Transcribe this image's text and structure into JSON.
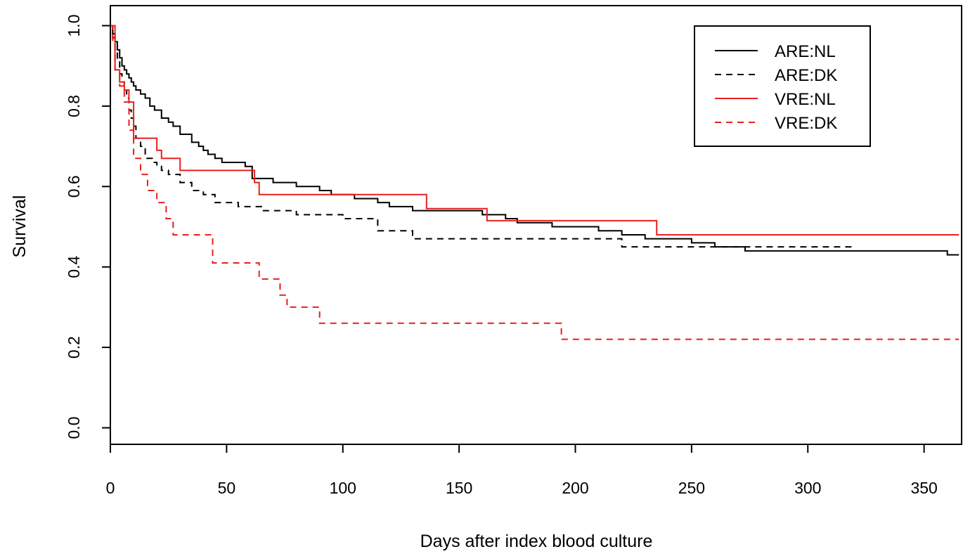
{
  "chart_data": {
    "type": "line",
    "subtype": "kaplan-meier step",
    "title": "",
    "xlabel": "Days after index blood culture",
    "ylabel": "Survival",
    "xlim": [
      0,
      365
    ],
    "ylim": [
      0,
      1.0
    ],
    "xticks": [
      0,
      50,
      100,
      150,
      200,
      250,
      300,
      350
    ],
    "yticks": [
      0.0,
      0.2,
      0.4,
      0.6,
      0.8,
      1.0
    ],
    "grid": false,
    "legend_position": "top-right",
    "series": [
      {
        "name": "ARE:NL",
        "color": "#000000",
        "dash": "solid",
        "x": [
          0,
          1,
          2,
          3,
          4,
          5,
          6,
          7,
          8,
          9,
          10,
          11,
          13,
          15,
          17,
          19,
          22,
          25,
          27,
          30,
          35,
          38,
          40,
          42,
          45,
          48,
          55,
          58,
          61,
          65,
          70,
          75,
          80,
          85,
          90,
          95,
          100,
          105,
          110,
          115,
          120,
          130,
          140,
          160,
          170,
          175,
          180,
          190,
          200,
          210,
          220,
          230,
          240,
          250,
          255,
          260,
          273,
          300,
          350,
          360,
          365
        ],
        "y": [
          1.0,
          0.98,
          0.96,
          0.94,
          0.92,
          0.9,
          0.89,
          0.88,
          0.87,
          0.86,
          0.85,
          0.84,
          0.83,
          0.82,
          0.8,
          0.79,
          0.77,
          0.76,
          0.75,
          0.73,
          0.71,
          0.7,
          0.69,
          0.68,
          0.67,
          0.66,
          0.66,
          0.65,
          0.62,
          0.62,
          0.61,
          0.61,
          0.6,
          0.6,
          0.59,
          0.58,
          0.58,
          0.57,
          0.57,
          0.56,
          0.55,
          0.54,
          0.54,
          0.53,
          0.52,
          0.51,
          0.51,
          0.5,
          0.5,
          0.49,
          0.48,
          0.47,
          0.47,
          0.46,
          0.46,
          0.45,
          0.44,
          0.44,
          0.44,
          0.43,
          0.43
        ]
      },
      {
        "name": "ARE:DK",
        "color": "#000000",
        "dash": "dashed",
        "x": [
          0,
          1,
          2,
          3,
          4,
          5,
          6,
          7,
          8,
          9,
          10,
          11,
          13,
          15,
          18,
          20,
          22,
          25,
          30,
          35,
          40,
          45,
          55,
          65,
          80,
          100,
          115,
          130,
          150,
          220,
          320
        ],
        "y": [
          1.0,
          0.97,
          0.94,
          0.91,
          0.88,
          0.86,
          0.84,
          0.82,
          0.79,
          0.77,
          0.75,
          0.72,
          0.7,
          0.67,
          0.66,
          0.65,
          0.64,
          0.63,
          0.61,
          0.59,
          0.58,
          0.56,
          0.55,
          0.54,
          0.53,
          0.52,
          0.49,
          0.47,
          0.47,
          0.45,
          0.45
        ]
      },
      {
        "name": "VRE:NL",
        "color": "#e8201c",
        "dash": "solid",
        "x": [
          0,
          2,
          4,
          6,
          8,
          10,
          20,
          22,
          30,
          45,
          62,
          64,
          100,
          136,
          162,
          235,
          365
        ],
        "y": [
          1.0,
          0.89,
          0.86,
          0.84,
          0.81,
          0.72,
          0.69,
          0.67,
          0.64,
          0.64,
          0.61,
          0.58,
          0.58,
          0.545,
          0.515,
          0.48,
          0.48
        ]
      },
      {
        "name": "VRE:DK",
        "color": "#e8201c",
        "dash": "dashed",
        "x": [
          0,
          1,
          2,
          4,
          6,
          8,
          10,
          13,
          16,
          20,
          24,
          27,
          30,
          44,
          58,
          64,
          73,
          76,
          90,
          194,
          365
        ],
        "y": [
          1.0,
          0.96,
          0.89,
          0.85,
          0.81,
          0.74,
          0.67,
          0.63,
          0.59,
          0.56,
          0.52,
          0.48,
          0.48,
          0.41,
          0.41,
          0.37,
          0.33,
          0.3,
          0.26,
          0.22,
          0.22
        ]
      }
    ]
  }
}
